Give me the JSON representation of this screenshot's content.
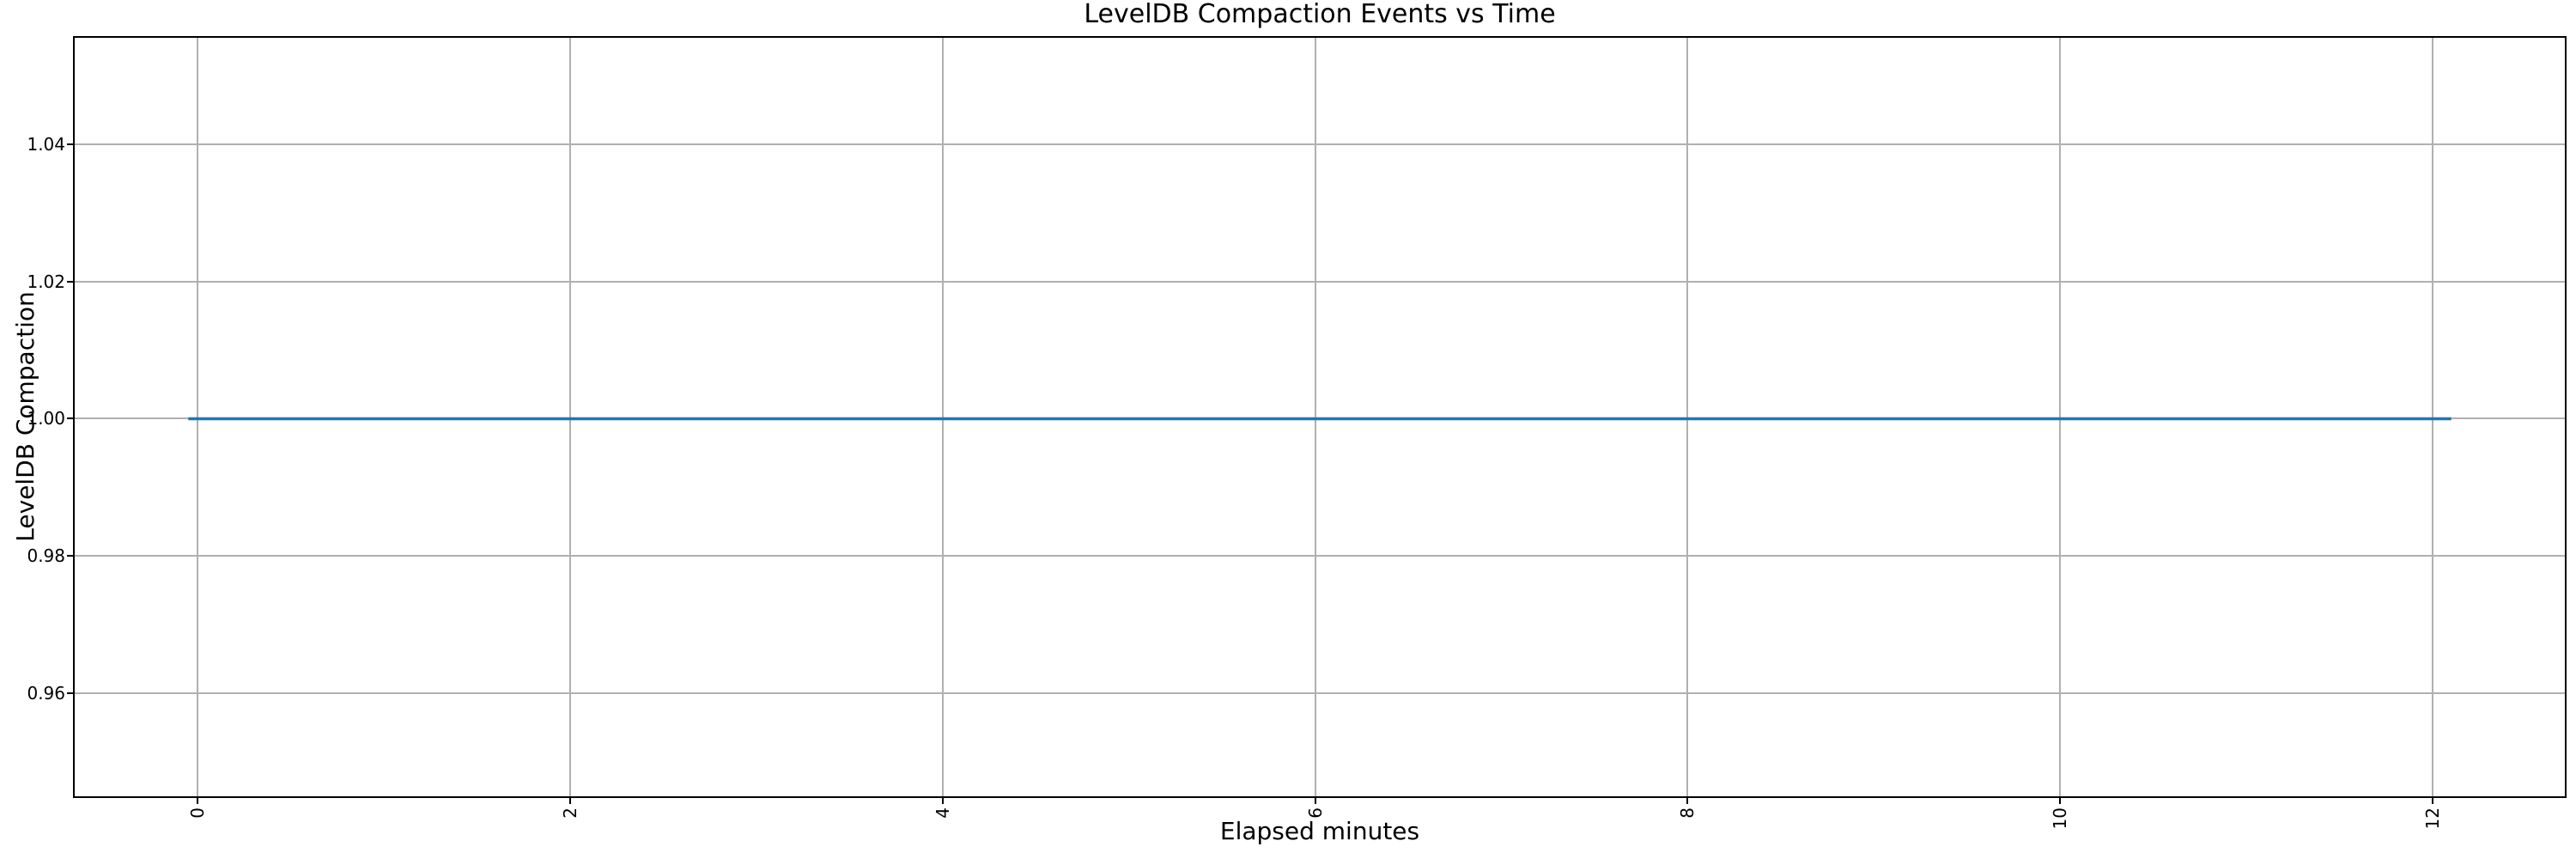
{
  "chart_data": {
    "type": "line",
    "title": "LevelDB Compaction Events vs Time",
    "grid": true,
    "legend": false,
    "x_axis": {
      "label": "Elapsed minutes",
      "tick_labels": [
        "0",
        "2",
        "4",
        "6",
        "8",
        "10",
        "12"
      ],
      "tick_values": [
        0,
        2,
        4,
        6,
        8,
        10,
        12
      ],
      "lim": [
        -0.66,
        12.71
      ],
      "tick_rotation_deg": 90
    },
    "y_axis": {
      "label": "LevelDB Compaction",
      "tick_labels": [
        "0.96",
        "0.98",
        "1.00",
        "1.02",
        "1.04"
      ],
      "tick_values": [
        0.96,
        0.98,
        1.0,
        1.02,
        1.04
      ],
      "lim": [
        0.945,
        1.0555
      ]
    },
    "series": [
      {
        "name": "LevelDB Compaction",
        "color": "#1f77b4",
        "points": [
          [
            -0.05,
            1.0
          ],
          [
            12.1,
            1.0
          ]
        ]
      }
    ],
    "colors": {
      "grid": "#b0b0b0",
      "spine": "#000000",
      "text": "#000000",
      "background": "#ffffff",
      "line": "#1f77b4"
    }
  }
}
